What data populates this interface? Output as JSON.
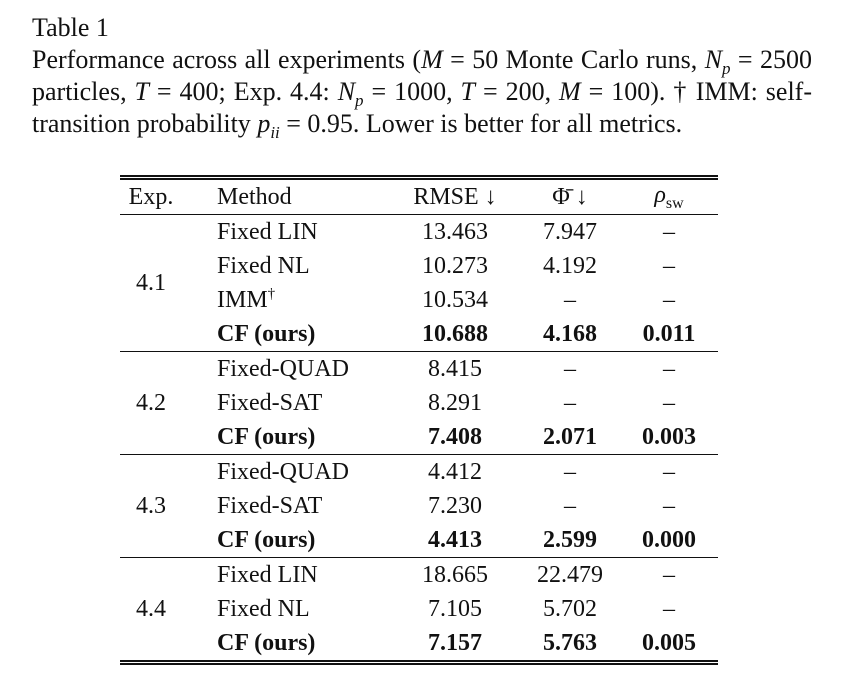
{
  "title": "Table 1",
  "caption": {
    "parts": [
      "Performance across all experiments (",
      "M",
      " = 50 Monte Carlo runs, ",
      "N",
      "p",
      " = 2500 particles, ",
      "T",
      " = 400; Exp. 4.4: ",
      "N",
      "p",
      " = 1000, ",
      "T",
      " = 200, ",
      "M",
      " = 100). † IMM: self-transition probability ",
      "p",
      "ii",
      " = 0.95. Lower is better for all metrics."
    ]
  },
  "table": {
    "headers": [
      "Exp.",
      "Method",
      "RMSE ↓",
      "Φ̄ ↓",
      {
        "symbol": "ρ",
        "sub": "sw"
      }
    ],
    "groups": [
      {
        "exp": "4.1",
        "rows": [
          {
            "cells": [
              "Fixed LIN",
              "13.463",
              "7.947",
              "–"
            ]
          },
          {
            "cells": [
              "Fixed NL",
              "10.273",
              "4.192",
              "–"
            ]
          },
          {
            "cells": [
              "IMM",
              "10.534",
              "–",
              "–"
            ],
            "method_mark": "†"
          },
          {
            "cells": [
              "CF (ours)",
              "10.688",
              "4.168",
              "0.011"
            ],
            "bold": true
          }
        ]
      },
      {
        "exp": "4.2",
        "rows": [
          {
            "cells": [
              "Fixed-QUAD",
              "8.415",
              "–",
              "–"
            ]
          },
          {
            "cells": [
              "Fixed-SAT",
              "8.291",
              "–",
              "–"
            ]
          },
          {
            "cells": [
              "CF (ours)",
              "7.408",
              "2.071",
              "0.003"
            ],
            "bold": true
          }
        ]
      },
      {
        "exp": "4.3",
        "rows": [
          {
            "cells": [
              "Fixed-QUAD",
              "4.412",
              "–",
              "–"
            ]
          },
          {
            "cells": [
              "Fixed-SAT",
              "7.230",
              "–",
              "–"
            ]
          },
          {
            "cells": [
              "CF (ours)",
              "4.413",
              "2.599",
              "0.000"
            ],
            "bold": true
          }
        ]
      },
      {
        "exp": "4.4",
        "rows": [
          {
            "cells": [
              "Fixed LIN",
              "18.665",
              "22.479",
              "–"
            ]
          },
          {
            "cells": [
              "Fixed NL",
              "7.105",
              "5.702",
              "–"
            ]
          },
          {
            "cells": [
              "CF (ours)",
              "7.157",
              "5.763",
              "0.005"
            ],
            "bold": true
          }
        ]
      }
    ]
  }
}
